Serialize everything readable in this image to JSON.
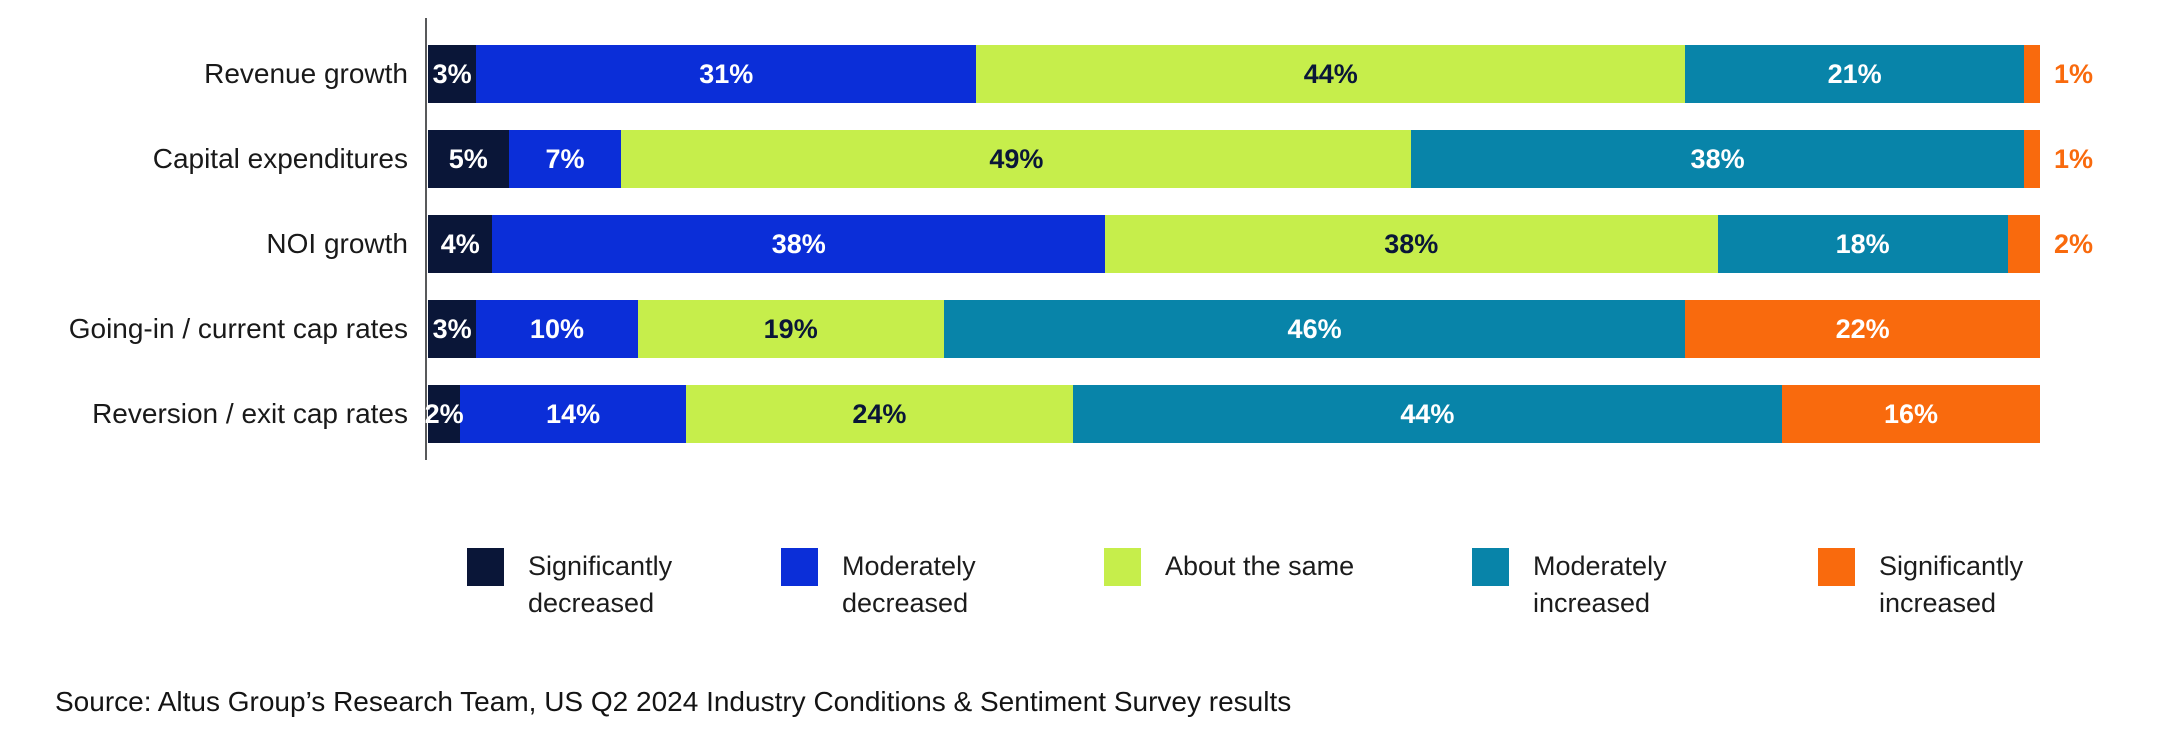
{
  "chart_data": {
    "type": "bar",
    "variant": "horizontal_stacked",
    "unit": "percent",
    "title": "",
    "xlim": [
      0,
      100
    ],
    "grid": false,
    "legend_position": "bottom",
    "categories": [
      "Revenue growth",
      "Capital expenditures",
      "NOI growth",
      "Going-in / current cap rates",
      "Reversion / exit cap rates"
    ],
    "series": [
      {
        "name": "Significantly decreased",
        "label_lines": [
          "Significantly",
          "decreased"
        ],
        "color": "#0a1638",
        "values": [
          3,
          5,
          4,
          3,
          2
        ]
      },
      {
        "name": "Moderately decreased",
        "label_lines": [
          "Moderately",
          "decreased"
        ],
        "color": "#0b2ed8",
        "values": [
          31,
          7,
          38,
          10,
          14
        ]
      },
      {
        "name": "About the same",
        "label_lines": [
          "About the same"
        ],
        "color": "#c6ee4b",
        "values": [
          44,
          49,
          38,
          19,
          24
        ]
      },
      {
        "name": "Moderately increased",
        "label_lines": [
          "Moderately",
          "increased"
        ],
        "color": "#0884a9",
        "values": [
          21,
          38,
          18,
          46,
          44
        ]
      },
      {
        "name": "Significantly increased",
        "label_lines": [
          "Significantly",
          "increased"
        ],
        "color": "#f96a0d",
        "values": [
          1,
          1,
          2,
          22,
          16
        ]
      }
    ],
    "value_label_rules": {
      "inside_text_on_dark": "#ffffff",
      "inside_text_on_light": "#0a1638",
      "light_series": [
        "About the same"
      ],
      "outside_text_color": "#f96a0d",
      "outside_if_last_series_value_at_most": 2,
      "suffix": "%"
    }
  },
  "source_note": "Source: Altus Group’s Research Team, US Q2 2024 Industry Conditions & Sentiment Survey results"
}
